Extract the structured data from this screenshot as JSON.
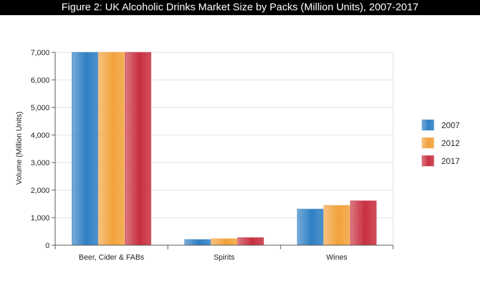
{
  "title": "Figure 2: UK Alcoholic Drinks Market Size by Packs (Million Units), 2007-2017",
  "colors": {
    "2007": "#2f7fc4",
    "2012": "#f1a23c",
    "2017": "#c83040",
    "title_bar": "#000000",
    "grid": "#e2e2e2",
    "axis": "#555555"
  },
  "chart_data": {
    "type": "bar",
    "categories": [
      "Beer, Cider & FABs",
      "Spirits",
      "Wines"
    ],
    "series": [
      {
        "name": "2007",
        "values": [
          7000,
          205,
          1310
        ]
      },
      {
        "name": "2012",
        "values": [
          7000,
          235,
          1445
        ]
      },
      {
        "name": "2017",
        "values": [
          7000,
          275,
          1610
        ]
      }
    ],
    "ylabel": "Volume (Million Units)",
    "xlabel": "",
    "ylim": [
      0,
      7000
    ],
    "yticks": [
      0,
      1000,
      2000,
      3000,
      4000,
      5000,
      6000,
      7000
    ],
    "ytick_labels": [
      "0",
      "1,000",
      "2,000",
      "3,000",
      "4,000",
      "5,000",
      "6,000",
      "7,000"
    ],
    "grid": true,
    "legend_position": "right"
  }
}
